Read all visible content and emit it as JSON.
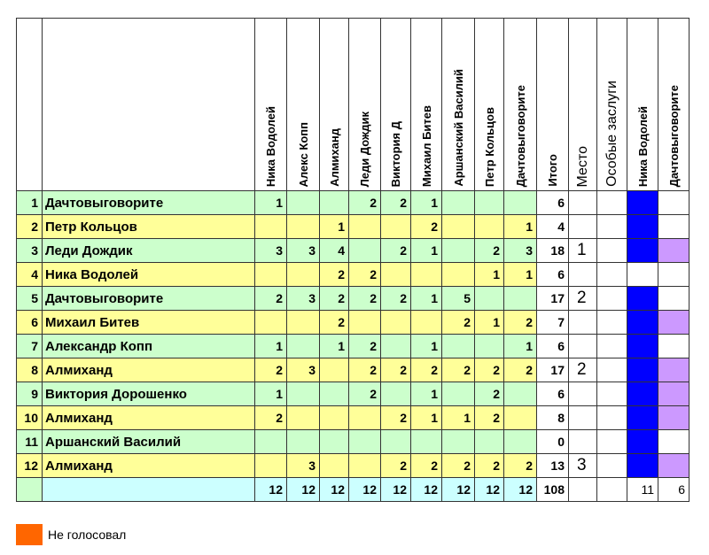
{
  "columns": [
    "Ника Водолей",
    "Алекс Копп",
    "Алмиханд",
    "Леди Дождик",
    "Виктория Д",
    "Михаил Битев",
    "Аршанский Василий",
    "Петр Кольцов",
    "Дачтовыговорите"
  ],
  "extra_headers": {
    "total": "Итого",
    "place": "Место",
    "merits": "Особые заслуги",
    "award1": "Ника Водолей",
    "award2": "Дачтовыговорите"
  },
  "rows": [
    {
      "n": "1",
      "name": "Дачтовыговорите",
      "v": [
        "1",
        "",
        "",
        "2",
        "2",
        "1",
        "",
        "",
        ""
      ],
      "total": "6",
      "place": "",
      "a1": "blue",
      "a2": ""
    },
    {
      "n": "2",
      "name": "Петр Кольцов",
      "v": [
        "",
        "",
        "1",
        "",
        "",
        "2",
        "",
        "",
        "1"
      ],
      "total": "4",
      "place": "",
      "a1": "blue",
      "a2": ""
    },
    {
      "n": "3",
      "name": "Леди Дождик",
      "v": [
        "3",
        "3",
        "4",
        "",
        "2",
        "1",
        "",
        "2",
        "3"
      ],
      "total": "18",
      "place": "1",
      "a1": "blue",
      "a2": "purple"
    },
    {
      "n": "4",
      "name": "Ника Водолей",
      "v": [
        "",
        "",
        "2",
        "2",
        "",
        "",
        "",
        "1",
        "1"
      ],
      "total": "6",
      "place": "",
      "a1": "",
      "a2": ""
    },
    {
      "n": "5",
      "name": "Дачтовыговорите",
      "v": [
        "2",
        "3",
        "2",
        "2",
        "2",
        "1",
        "5",
        "",
        ""
      ],
      "total": "17",
      "place": "2",
      "a1": "blue",
      "a2": ""
    },
    {
      "n": "6",
      "name": "Михаил Битев",
      "v": [
        "",
        "",
        "2",
        "",
        "",
        "",
        "2",
        "1",
        "2"
      ],
      "total": "7",
      "place": "",
      "a1": "blue",
      "a2": "purple"
    },
    {
      "n": "7",
      "name": "Александр Копп",
      "v": [
        "1",
        "",
        "1",
        "2",
        "",
        "1",
        "",
        "",
        "1"
      ],
      "total": "6",
      "place": "",
      "a1": "blue",
      "a2": ""
    },
    {
      "n": "8",
      "name": "Алмиханд",
      "v": [
        "2",
        "3",
        "",
        "2",
        "2",
        "2",
        "2",
        "2",
        "2"
      ],
      "total": "17",
      "place": "2",
      "a1": "blue",
      "a2": "purple"
    },
    {
      "n": "9",
      "name": "Виктория Дорошенко",
      "v": [
        "1",
        "",
        "",
        "2",
        "",
        "1",
        "",
        "2",
        ""
      ],
      "total": "6",
      "place": "",
      "a1": "blue",
      "a2": "purple"
    },
    {
      "n": "10",
      "name": "Алмиханд",
      "v": [
        "2",
        "",
        "",
        "",
        "2",
        "1",
        "1",
        "2",
        ""
      ],
      "total": "8",
      "place": "",
      "a1": "blue",
      "a2": "purple"
    },
    {
      "n": "11",
      "name": "Аршанский Василий",
      "v": [
        "",
        "",
        "",
        "",
        "",
        "",
        "",
        "",
        ""
      ],
      "total": "0",
      "place": "",
      "a1": "blue",
      "a2": ""
    },
    {
      "n": "12",
      "name": "Алмиханд",
      "v": [
        "",
        "3",
        "",
        "",
        "2",
        "2",
        "2",
        "2",
        "2"
      ],
      "total": "13",
      "place": "3",
      "a1": "blue",
      "a2": "purple"
    }
  ],
  "totals": {
    "v": [
      "12",
      "12",
      "12",
      "12",
      "12",
      "12",
      "12",
      "12",
      "12"
    ],
    "total": "108",
    "a1": "11",
    "a2": "6"
  },
  "legend": {
    "label": "Не голосовал",
    "color": "#ff6600"
  },
  "colors": {
    "green": "#ccffcc",
    "yellow": "#ffff99",
    "cyan": "#ccffff",
    "blue": "#0000ff",
    "purple": "#cc99ff"
  }
}
